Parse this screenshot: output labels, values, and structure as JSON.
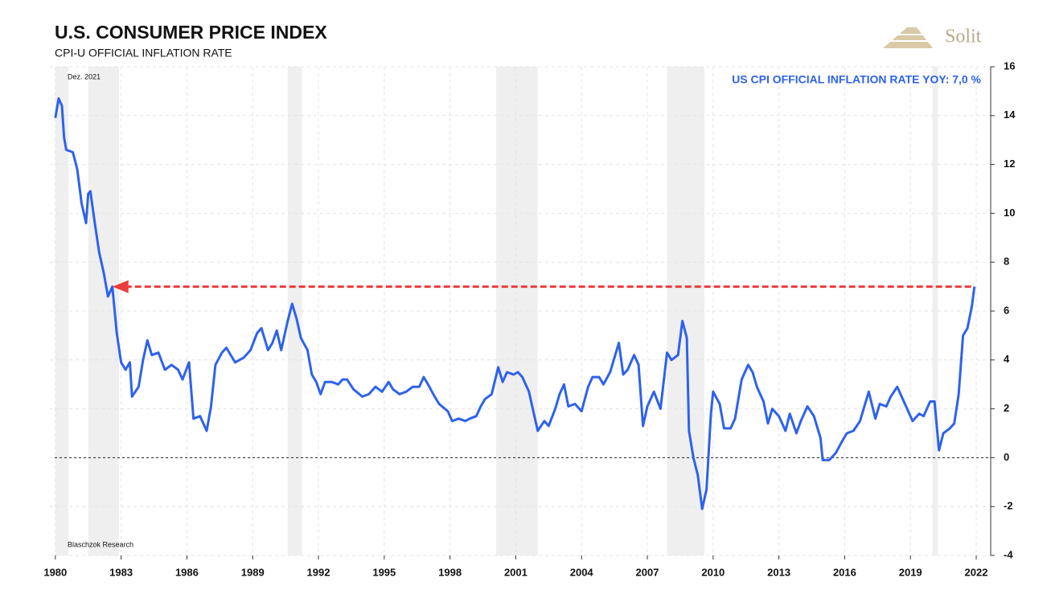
{
  "chart_data": {
    "type": "line",
    "title": "U.S. CONSUMER PRICE INDEX",
    "subtitle": "CPI-U OFFICIAL INFLATION RATE",
    "date_note": "Dez. 2021",
    "source": "Blaschzok Research",
    "brand": "Solit",
    "annotation": "US CPI OFFICIAL INFLATION RATE YOY: 7,0 %",
    "xlim": [
      1979.75,
      2022.66
    ],
    "xticks": [
      1980,
      1983,
      1986,
      1989,
      1992,
      1995,
      1998,
      2001,
      2004,
      2007,
      2010,
      2013,
      2016,
      2019,
      2022
    ],
    "ylim": [
      -4,
      16
    ],
    "yticks": [
      -4,
      -2,
      0,
      2,
      4,
      6,
      8,
      10,
      12,
      14,
      16
    ],
    "grid": true,
    "zero_line": true,
    "shaded_periods": [
      [
        1980.0,
        1980.6
      ],
      [
        1981.5,
        1982.9
      ],
      [
        1990.6,
        1991.25
      ],
      [
        2000.1,
        2002.0
      ],
      [
        2007.9,
        2009.6
      ],
      [
        2020.0,
        2020.25
      ]
    ],
    "reference_line": {
      "value": 7.0,
      "x": [
        1982.6,
        2021.92
      ],
      "color": "#ee3b3b"
    },
    "series": [
      {
        "name": "US CPI",
        "color": "#2e62ec",
        "x": [
          1980.0,
          1980.15,
          1980.3,
          1980.4,
          1980.5,
          1980.8,
          1981.0,
          1981.2,
          1981.3,
          1981.4,
          1981.5,
          1981.6,
          1981.8,
          1982.0,
          1982.2,
          1982.4,
          1982.6,
          1982.8,
          1983.0,
          1983.2,
          1983.4,
          1983.5,
          1983.8,
          1984.0,
          1984.2,
          1984.4,
          1984.7,
          1985.0,
          1985.3,
          1985.6,
          1985.8,
          1986.1,
          1986.3,
          1986.6,
          1986.9,
          1987.1,
          1987.3,
          1987.6,
          1987.8,
          1988.2,
          1988.6,
          1988.9,
          1989.2,
          1989.4,
          1989.7,
          1989.9,
          1990.1,
          1990.3,
          1990.6,
          1990.8,
          1991.0,
          1991.2,
          1991.5,
          1991.7,
          1991.9,
          1992.1,
          1992.3,
          1992.6,
          1992.9,
          1993.1,
          1993.3,
          1993.6,
          1994.0,
          1994.3,
          1994.6,
          1994.9,
          1995.2,
          1995.4,
          1995.7,
          1996.0,
          1996.3,
          1996.6,
          1996.8,
          1997.0,
          1997.3,
          1997.5,
          1997.9,
          1998.1,
          1998.4,
          1998.7,
          1998.9,
          1999.2,
          1999.4,
          1999.6,
          1999.9,
          2000.2,
          2000.4,
          2000.6,
          2000.9,
          2001.1,
          2001.3,
          2001.6,
          2001.8,
          2002.0,
          2002.3,
          2002.5,
          2002.8,
          2003.0,
          2003.2,
          2003.4,
          2003.7,
          2004.0,
          2004.3,
          2004.5,
          2004.8,
          2005.0,
          2005.3,
          2005.7,
          2005.9,
          2006.1,
          2006.4,
          2006.6,
          2006.8,
          2007.0,
          2007.3,
          2007.6,
          2007.9,
          2008.1,
          2008.4,
          2008.6,
          2008.8,
          2008.9,
          2009.1,
          2009.3,
          2009.5,
          2009.7,
          2009.9,
          2010.0,
          2010.3,
          2010.5,
          2010.8,
          2011.0,
          2011.3,
          2011.6,
          2011.8,
          2012.0,
          2012.3,
          2012.5,
          2012.7,
          2013.0,
          2013.3,
          2013.5,
          2013.8,
          2014.0,
          2014.3,
          2014.6,
          2014.9,
          2015.0,
          2015.3,
          2015.6,
          2015.9,
          2016.1,
          2016.4,
          2016.7,
          2016.9,
          2017.1,
          2017.4,
          2017.6,
          2017.9,
          2018.1,
          2018.4,
          2018.7,
          2018.9,
          2019.1,
          2019.4,
          2019.6,
          2019.9,
          2020.1,
          2020.3,
          2020.5,
          2020.8,
          2021.0,
          2021.2,
          2021.4,
          2021.6,
          2021.8,
          2021.92
        ],
        "values": [
          13.9,
          14.7,
          14.4,
          13.1,
          12.6,
          12.5,
          11.8,
          10.4,
          10.0,
          9.6,
          10.8,
          10.9,
          9.6,
          8.4,
          7.6,
          6.6,
          7.0,
          5.1,
          3.9,
          3.6,
          3.9,
          2.5,
          2.9,
          4.0,
          4.8,
          4.2,
          4.3,
          3.6,
          3.8,
          3.6,
          3.2,
          3.9,
          1.6,
          1.7,
          1.1,
          2.1,
          3.8,
          4.3,
          4.5,
          3.9,
          4.1,
          4.4,
          5.1,
          5.3,
          4.4,
          4.7,
          5.2,
          4.4,
          5.6,
          6.3,
          5.7,
          4.9,
          4.4,
          3.4,
          3.1,
          2.6,
          3.1,
          3.1,
          3.0,
          3.2,
          3.2,
          2.8,
          2.5,
          2.6,
          2.9,
          2.7,
          3.1,
          2.8,
          2.6,
          2.7,
          2.9,
          2.9,
          3.3,
          3.0,
          2.5,
          2.2,
          1.9,
          1.5,
          1.6,
          1.5,
          1.6,
          1.7,
          2.1,
          2.4,
          2.6,
          3.7,
          3.1,
          3.5,
          3.4,
          3.5,
          3.3,
          2.7,
          1.9,
          1.1,
          1.5,
          1.3,
          2.0,
          2.6,
          3.0,
          2.1,
          2.2,
          1.9,
          2.9,
          3.3,
          3.3,
          3.0,
          3.5,
          4.7,
          3.4,
          3.6,
          4.2,
          3.8,
          1.3,
          2.1,
          2.7,
          2.0,
          4.3,
          4.0,
          4.2,
          5.6,
          4.9,
          1.1,
          0.0,
          -0.7,
          -2.1,
          -1.3,
          1.8,
          2.7,
          2.2,
          1.2,
          1.2,
          1.6,
          3.2,
          3.8,
          3.5,
          2.9,
          2.3,
          1.4,
          2.0,
          1.7,
          1.1,
          1.8,
          1.0,
          1.5,
          2.1,
          1.7,
          0.8,
          -0.1,
          -0.1,
          0.2,
          0.7,
          1.0,
          1.1,
          1.5,
          2.1,
          2.7,
          1.6,
          2.2,
          2.1,
          2.5,
          2.9,
          2.3,
          1.9,
          1.5,
          1.8,
          1.7,
          2.3,
          2.3,
          0.3,
          1.0,
          1.2,
          1.4,
          2.6,
          5.0,
          5.3,
          6.2,
          7.0
        ]
      }
    ]
  }
}
